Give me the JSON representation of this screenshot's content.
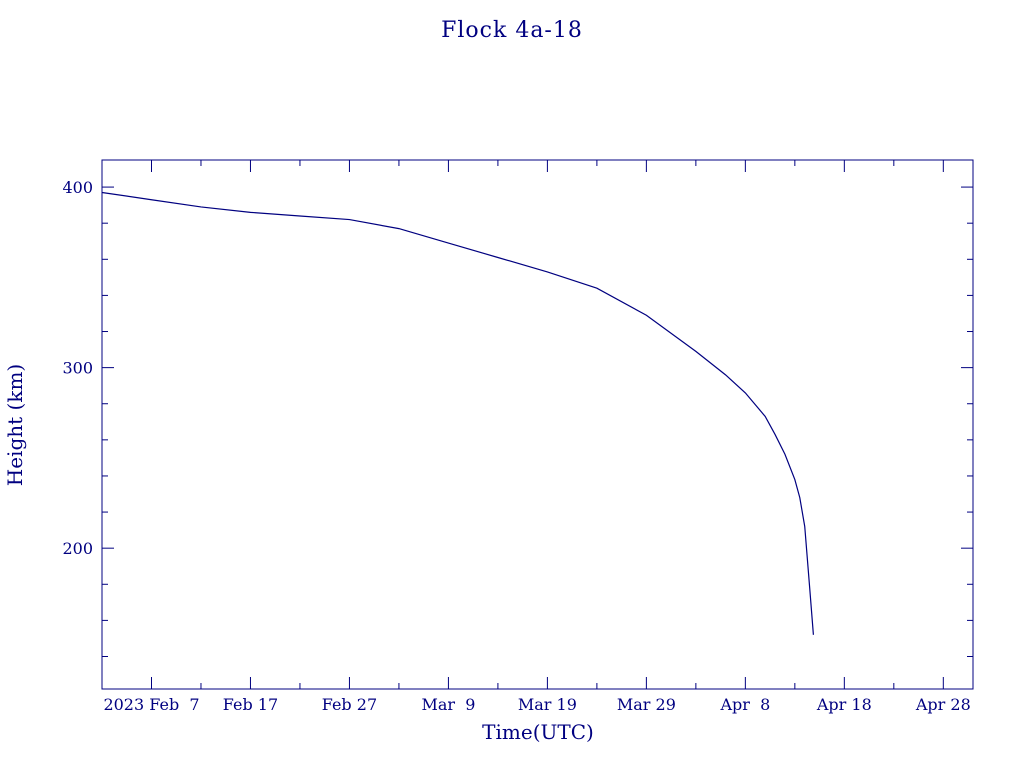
{
  "chart_data": {
    "type": "line",
    "title": "Flock 4a-18",
    "xlabel": "Time(UTC)",
    "ylabel": "Height (km)",
    "color": "#000080",
    "grid": false,
    "xlim": [
      "2023-02-02",
      "2023-05-01"
    ],
    "ylim": [
      122,
      415
    ],
    "x_ticks": [
      {
        "date": "2023-02-07",
        "label": "2023 Feb  7"
      },
      {
        "date": "2023-02-17",
        "label": "Feb 17"
      },
      {
        "date": "2023-02-27",
        "label": "Feb 27"
      },
      {
        "date": "2023-03-09",
        "label": "Mar  9"
      },
      {
        "date": "2023-03-19",
        "label": "Mar 19"
      },
      {
        "date": "2023-03-29",
        "label": "Mar 29"
      },
      {
        "date": "2023-04-08",
        "label": "Apr  8"
      },
      {
        "date": "2023-04-18",
        "label": "Apr 18"
      },
      {
        "date": "2023-04-28",
        "label": "Apr 28"
      }
    ],
    "y_ticks": [
      {
        "value": 200,
        "label": "200"
      },
      {
        "value": 300,
        "label": "300"
      },
      {
        "value": 400,
        "label": "400"
      }
    ],
    "series": [
      {
        "color": "#000080",
        "points": [
          {
            "x": "2023-02-02",
            "y": 397
          },
          {
            "x": "2023-02-07",
            "y": 393
          },
          {
            "x": "2023-02-12",
            "y": 389
          },
          {
            "x": "2023-02-17",
            "y": 386
          },
          {
            "x": "2023-02-22",
            "y": 384
          },
          {
            "x": "2023-02-27",
            "y": 382
          },
          {
            "x": "2023-03-04",
            "y": 377
          },
          {
            "x": "2023-03-09",
            "y": 369
          },
          {
            "x": "2023-03-14",
            "y": 361
          },
          {
            "x": "2023-03-19",
            "y": 353
          },
          {
            "x": "2023-03-24",
            "y": 344
          },
          {
            "x": "2023-03-29",
            "y": 329
          },
          {
            "x": "2023-04-03",
            "y": 309
          },
          {
            "x": "2023-04-06",
            "y": 296
          },
          {
            "x": "2023-04-08",
            "y": 286
          },
          {
            "x": "2023-04-10",
            "y": 273
          },
          {
            "x": "2023-04-11",
            "y": 263
          },
          {
            "x": "2023-04-12",
            "y": 252
          },
          {
            "x": "2023-04-13",
            "y": 238
          },
          {
            "x": "2023-04-13T12:00",
            "y": 228
          },
          {
            "x": "2023-04-14",
            "y": 212
          },
          {
            "x": "2023-04-14T12:00",
            "y": 178
          },
          {
            "x": "2023-04-14T21:00",
            "y": 152
          }
        ]
      }
    ]
  }
}
